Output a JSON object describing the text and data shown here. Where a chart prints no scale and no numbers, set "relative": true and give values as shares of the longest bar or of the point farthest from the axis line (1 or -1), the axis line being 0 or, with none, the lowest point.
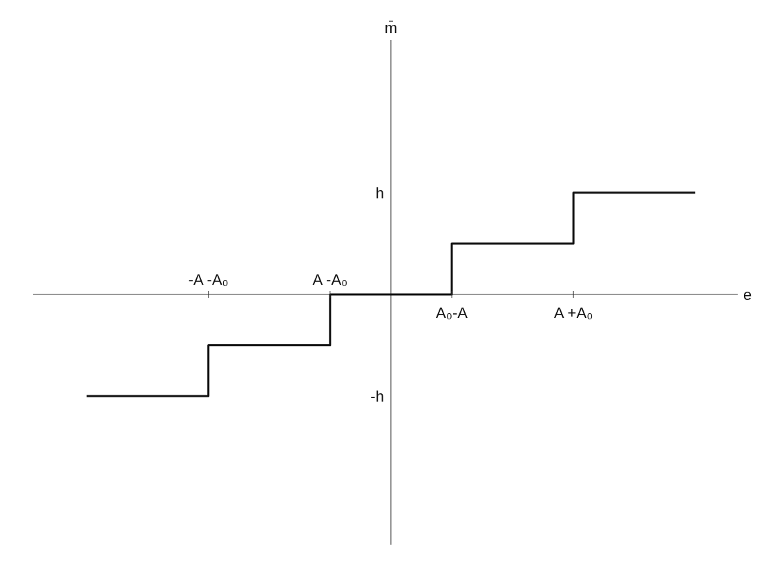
{
  "chart_data": {
    "type": "step",
    "relative": true,
    "xlabel": "e",
    "categories": [
      null,
      "-A -A₀",
      "A -A₀",
      "A₀-A",
      "A +A₀",
      null
    ],
    "series": [
      {
        "color": "#111111",
        "values": [
          -1,
          -0.5,
          0,
          0.5,
          1,
          1
        ]
      }
    ],
    "annotations": [
      "m̄",
      "h",
      "-h"
    ],
    "marker": "none",
    "line_style": "solid"
  }
}
